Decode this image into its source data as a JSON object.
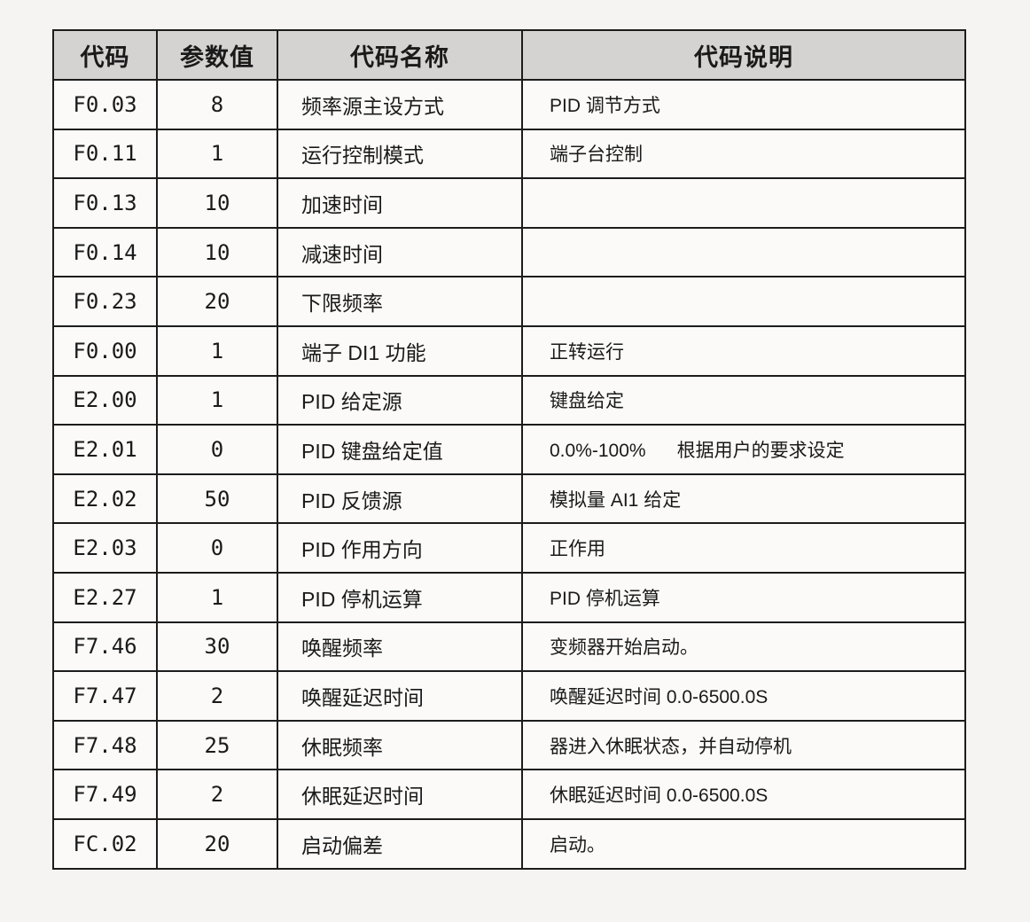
{
  "colors": {
    "page_background": "#f6f4f3",
    "cell_background": "#fbfaf9",
    "header_background": "#d5d3d2",
    "border": "#1c1c1c",
    "text": "#1a1a1a"
  },
  "table": {
    "headers": [
      "代码",
      "参数值",
      "代码名称",
      "代码说明"
    ],
    "rows": [
      {
        "code": "F0.03",
        "value": "8",
        "name": "频率源主设方式",
        "desc": "PID 调节方式"
      },
      {
        "code": "F0.11",
        "value": "1",
        "name": "运行控制模式",
        "desc": "端子台控制"
      },
      {
        "code": "F0.13",
        "value": "10",
        "name": "加速时间",
        "desc": ""
      },
      {
        "code": "F0.14",
        "value": "10",
        "name": "减速时间",
        "desc": ""
      },
      {
        "code": "F0.23",
        "value": "20",
        "name": "下限频率",
        "desc": ""
      },
      {
        "code": "F0.00",
        "value": "1",
        "name": "端子 DI1 功能",
        "desc": "正转运行"
      },
      {
        "code": "E2.00",
        "value": "1",
        "name": "PID 给定源",
        "desc": "键盘给定"
      },
      {
        "code": "E2.01",
        "value": "0",
        "name": "PID 键盘给定值",
        "desc": "0.0%-100%      根据用户的要求设定"
      },
      {
        "code": "E2.02",
        "value": "50",
        "name": "PID 反馈源",
        "desc": "模拟量 AI1 给定"
      },
      {
        "code": "E2.03",
        "value": "0",
        "name": "PID 作用方向",
        "desc": "正作用"
      },
      {
        "code": "E2.27",
        "value": "1",
        "name": "PID 停机运算",
        "desc": "PID 停机运算"
      },
      {
        "code": "F7.46",
        "value": "30",
        "name": "唤醒频率",
        "desc": "变频器开始启动。"
      },
      {
        "code": "F7.47",
        "value": "2",
        "name": "唤醒延迟时间",
        "desc": "唤醒延迟时间 0.0-6500.0S"
      },
      {
        "code": "F7.48",
        "value": "25",
        "name": "休眠频率",
        "desc": "器进入休眠状态，并自动停机"
      },
      {
        "code": "F7.49",
        "value": "2",
        "name": "休眠延迟时间",
        "desc": "休眠延迟时间 0.0-6500.0S"
      },
      {
        "code": "FC.02",
        "value": "20",
        "name": "启动偏差",
        "desc": "启动。"
      }
    ]
  }
}
